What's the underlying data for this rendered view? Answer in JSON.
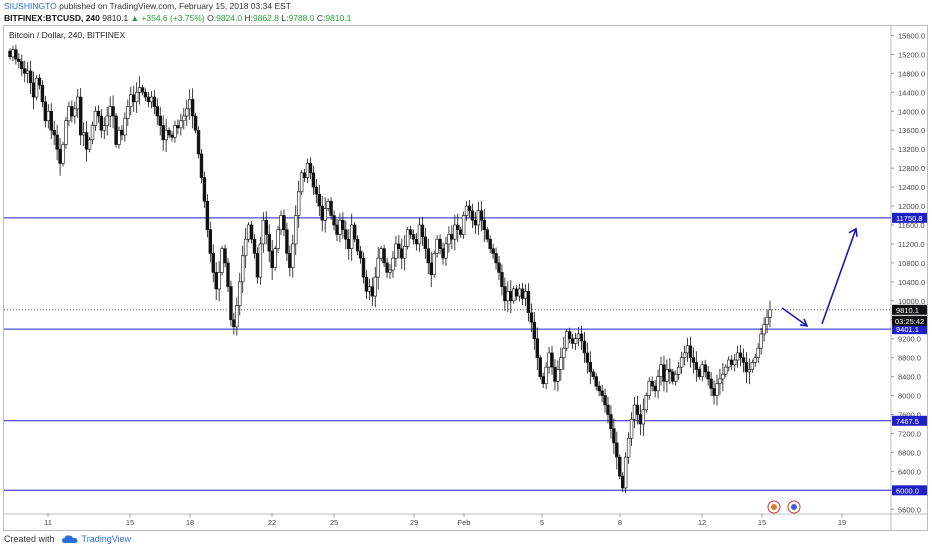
{
  "header": {
    "publisher": "SIUSHINGTO",
    "published_text": "published on TradingView.com, February 15, 2018 03:34 EST",
    "symbol": "BITFINEX:BTCUSD, 240",
    "last": "9810.1",
    "change": "▲ +354.6 (+3.75%)",
    "open_label": "O:",
    "open": "9824.0",
    "high_label": "H:",
    "high": "9862.8",
    "low_label": "L:",
    "low": "9788.0",
    "close_label": "C:",
    "close": "9810.1"
  },
  "footer": {
    "created_with": "Created with",
    "brand": "TradingView"
  },
  "chart_data": {
    "type": "candlestick",
    "title": "Bitcoin / Dollar, 240, BITFINEX",
    "ylim": [
      5500,
      15800
    ],
    "y_ticks": [
      "5600.0",
      "6000.0",
      "6400.0",
      "6800.0",
      "7200.0",
      "7600.0",
      "8000.0",
      "8400.0",
      "8800.0",
      "9200.0",
      "9600.0",
      "10000.0",
      "10400.0",
      "10800.0",
      "11200.0",
      "11600.0",
      "12000.0",
      "12400.0",
      "12800.0",
      "13200.0",
      "13600.0",
      "14000.0",
      "14400.0",
      "14800.0",
      "15200.0",
      "15600.0"
    ],
    "x_ticks": [
      "11",
      "15",
      "18",
      "22",
      "25",
      "29",
      "Feb",
      "5",
      "8",
      "12",
      "15",
      "19"
    ],
    "horizontal_levels": [
      {
        "value": 11750.8,
        "label": "11750.8",
        "color": "#2020c8"
      },
      {
        "value": 9401.1,
        "label": "9401.1",
        "color": "#2020c8"
      },
      {
        "value": 7467.5,
        "label": "7467.5",
        "color": "#2020c8"
      },
      {
        "value": 6000.0,
        "label": "6000.0",
        "color": "#2020c8"
      }
    ],
    "last_price": {
      "value": 9810.1,
      "label": "9810.1",
      "countdown": "03:25:42"
    },
    "path_projection": [
      [
        9850,
        9470
      ],
      [
        11520
      ]
    ],
    "closes": [
      15150,
      15300,
      15100,
      15050,
      14900,
      14800,
      14850,
      14600,
      14300,
      14700,
      14550,
      14200,
      13800,
      14000,
      13600,
      13500,
      13200,
      12900,
      13300,
      13800,
      14100,
      13900,
      14050,
      14300,
      13500,
      13550,
      13200,
      13400,
      13700,
      14000,
      13900,
      13600,
      13700,
      13900,
      14100,
      13900,
      13300,
      13600,
      13500,
      13850,
      14100,
      14350,
      14200,
      14400,
      14500,
      14400,
      14300,
      14200,
      14300,
      14100,
      13900,
      13700,
      13400,
      13600,
      13500,
      13450,
      13700,
      13650,
      13800,
      13900,
      14050,
      14250,
      13900,
      13600,
      13100,
      12600,
      12100,
      11500,
      11000,
      10600,
      10250,
      10600,
      11100,
      10800,
      10300,
      9600,
      9450,
      9900,
      10400,
      10950,
      11300,
      11600,
      11300,
      11000,
      10500,
      11200,
      11700,
      11400,
      11050,
      10700,
      11100,
      11500,
      11800,
      11500,
      11000,
      10700,
      11200,
      11800,
      12300,
      12700,
      12600,
      12900,
      12700,
      12400,
      12250,
      12000,
      11700,
      11950,
      12100,
      11800,
      11600,
      11400,
      11700,
      11500,
      11300,
      11100,
      11600,
      11300,
      11050,
      10900,
      10500,
      10200,
      10300,
      10100,
      10500,
      10900,
      11100,
      10800,
      10600,
      10650,
      10900,
      11200,
      11100,
      10900,
      11150,
      11500,
      11400,
      11300,
      11200,
      11600,
      11350,
      11100,
      10800,
      10550,
      11000,
      11300,
      11100,
      10900,
      11200,
      11400,
      11300,
      11600,
      11500,
      11400,
      11800,
      12000,
      11900,
      11700,
      11600,
      11900,
      11700,
      11500,
      11300,
      11100,
      11000,
      10800,
      10600,
      10300,
      10000,
      10200,
      10000,
      10250,
      10100,
      10250,
      10050,
      10200,
      9750,
      9550,
      9200,
      8800,
      8400,
      8250,
      8600,
      8900,
      8600,
      8300,
      8550,
      8800,
      9000,
      9350,
      9200,
      9100,
      9200,
      9300,
      9150,
      8900,
      8700,
      8500,
      8400,
      8200,
      8100,
      8000,
      7800,
      7600,
      7300,
      7000,
      6700,
      6300,
      6050,
      6700,
      7100,
      7500,
      7800,
      7600,
      7400,
      7700,
      8000,
      8300,
      8200,
      8100,
      8400,
      8650,
      8300,
      8550,
      8500,
      8300,
      8450,
      8600,
      8800,
      8900,
      9050,
      8800,
      8700,
      8550,
      8400,
      8650,
      8500,
      8350,
      8150,
      8000,
      8250,
      8350,
      8450,
      8600,
      8750,
      8650,
      8750,
      8900,
      8800,
      8700,
      8500,
      8550,
      8700,
      8800,
      9000,
      9300,
      9500,
      9650,
      9810
    ]
  }
}
